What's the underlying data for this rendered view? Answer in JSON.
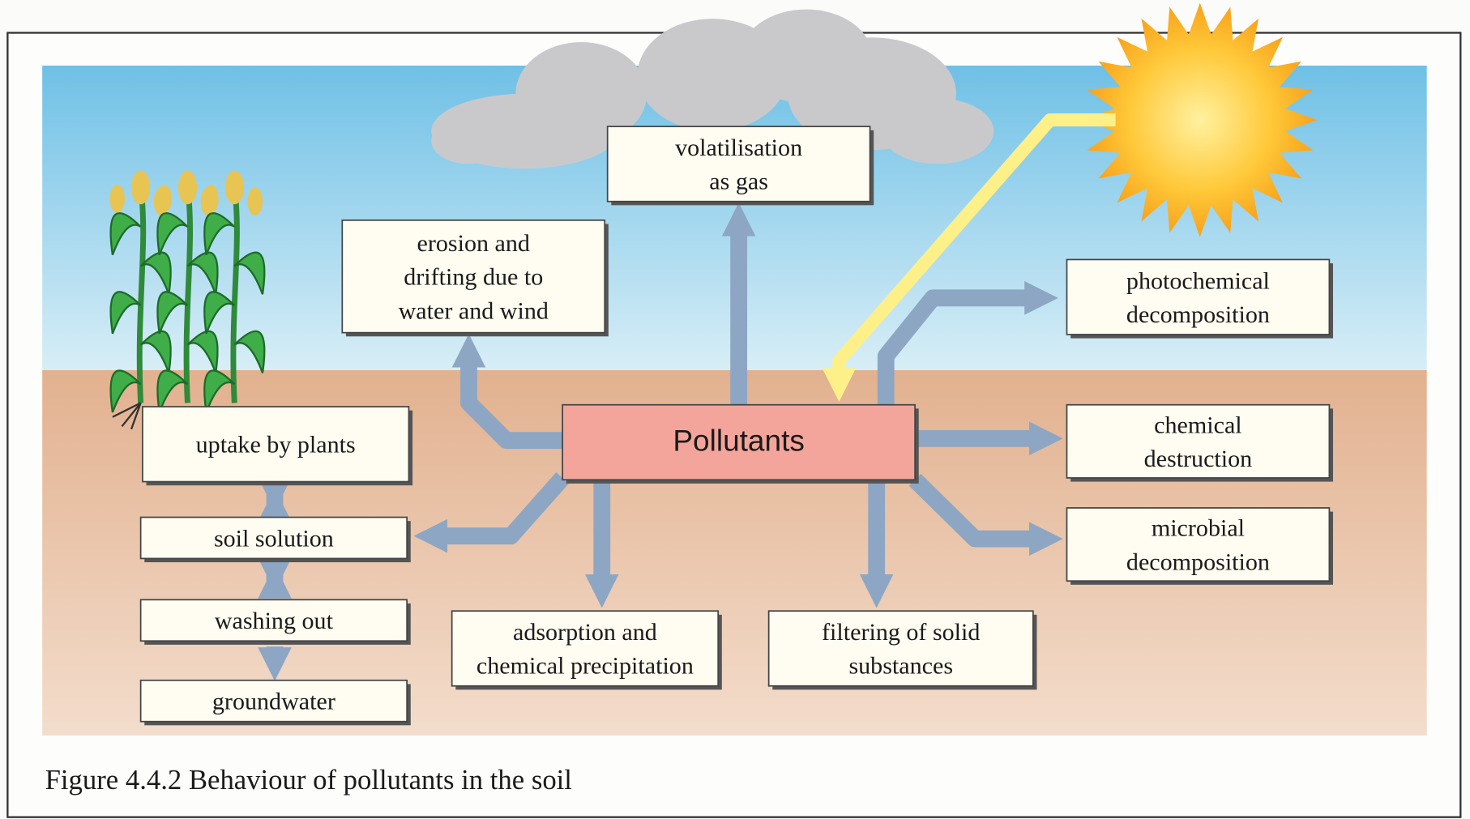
{
  "nodes": [
    {
      "lines": [
        "volatilisation",
        "as gas"
      ]
    },
    {
      "lines": [
        "erosion and",
        "drifting due to",
        "water and wind"
      ]
    },
    {
      "lines": [
        "photochemical",
        "decomposition"
      ]
    },
    {
      "lines": [
        "chemical",
        "destruction"
      ]
    },
    {
      "lines": [
        "microbial",
        "decomposition"
      ]
    },
    {
      "lines": [
        "filtering of solid",
        "substances"
      ]
    },
    {
      "lines": [
        "adsorption and",
        "chemical precipitation"
      ]
    },
    {
      "lines": [
        "uptake by plants"
      ]
    },
    {
      "lines": [
        "soil solution"
      ]
    },
    {
      "lines": [
        "washing out"
      ]
    },
    {
      "lines": [
        "groundwater"
      ]
    },
    {
      "lines": [
        "Pollutants"
      ]
    }
  ],
  "caption": "Figure 4.4.2 Behaviour of pollutants in the soil"
}
